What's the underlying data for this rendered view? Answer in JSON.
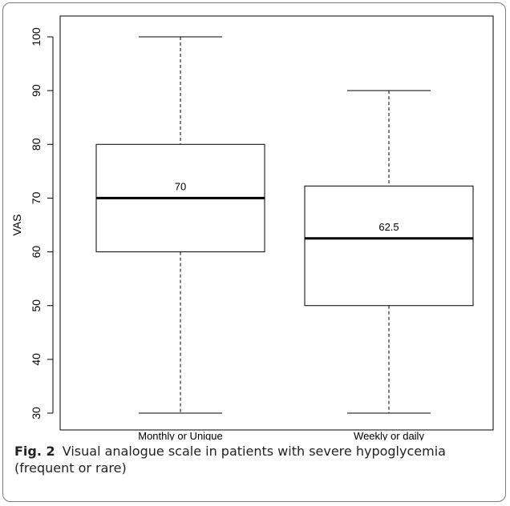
{
  "chart_data": {
    "type": "boxplot",
    "ylabel": "VAS",
    "xlabel": "",
    "ylim": [
      30,
      100
    ],
    "yticks": [
      30,
      40,
      50,
      60,
      70,
      80,
      90,
      100
    ],
    "grid": false,
    "categories": [
      "Monthly or Unique",
      "Weekly or daily"
    ],
    "boxes": [
      {
        "category": "Monthly or Unique",
        "min": 30,
        "q1": 60,
        "median": 70,
        "q3": 80,
        "max": 100,
        "median_label": "70"
      },
      {
        "category": "Weekly or daily",
        "min": 30,
        "q1": 50,
        "median": 62.5,
        "q3": 72.25,
        "max": 90,
        "median_label": "62.5"
      }
    ]
  },
  "caption": {
    "label": "Fig. 2",
    "text": "Visual analogue scale in patients with severe hypoglycemia (frequent or rare)"
  },
  "colors": {
    "box_stroke": "#000000",
    "background": "#ffffff",
    "frame_border": "#7a7a7a"
  }
}
